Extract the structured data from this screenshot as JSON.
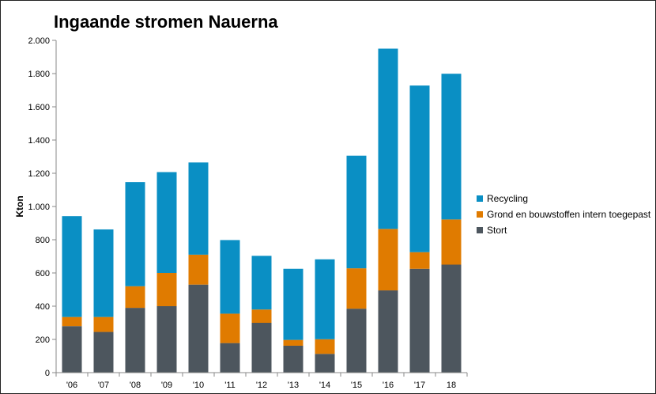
{
  "chart_data": {
    "type": "bar",
    "stacked": true,
    "title": "Ingaande stromen Nauerna",
    "xlabel": "",
    "ylabel": "Kton",
    "ylim": [
      0,
      2000
    ],
    "yticks": [
      0,
      200,
      400,
      600,
      800,
      1000,
      1200,
      1400,
      1600,
      1800,
      2000
    ],
    "ytick_labels": [
      "0",
      "200",
      "400",
      "600",
      "800",
      "1.000",
      "1.200",
      "1.400",
      "1.600",
      "1.800",
      "2.000"
    ],
    "grid": false,
    "legend_position": "right",
    "categories": [
      "'06",
      "'07",
      "'08",
      "'09",
      "'10",
      "'11",
      "'12",
      "'13",
      "'14",
      "'15",
      "'16",
      "'17",
      "18"
    ],
    "series": [
      {
        "name": "Stort",
        "color": "#4d565e",
        "values": [
          280,
          245,
          390,
          400,
          530,
          178,
          300,
          162,
          113,
          385,
          495,
          625,
          650
        ]
      },
      {
        "name": "Grond en bouwstoffen intern toegepast",
        "color": "#e07b00",
        "values": [
          55,
          90,
          130,
          200,
          180,
          177,
          80,
          35,
          88,
          243,
          370,
          100,
          272
        ]
      },
      {
        "name": "Recycling",
        "color": "#0a8fc4",
        "values": [
          607,
          527,
          627,
          607,
          555,
          443,
          323,
          428,
          481,
          678,
          1085,
          1003,
          877
        ]
      }
    ]
  }
}
